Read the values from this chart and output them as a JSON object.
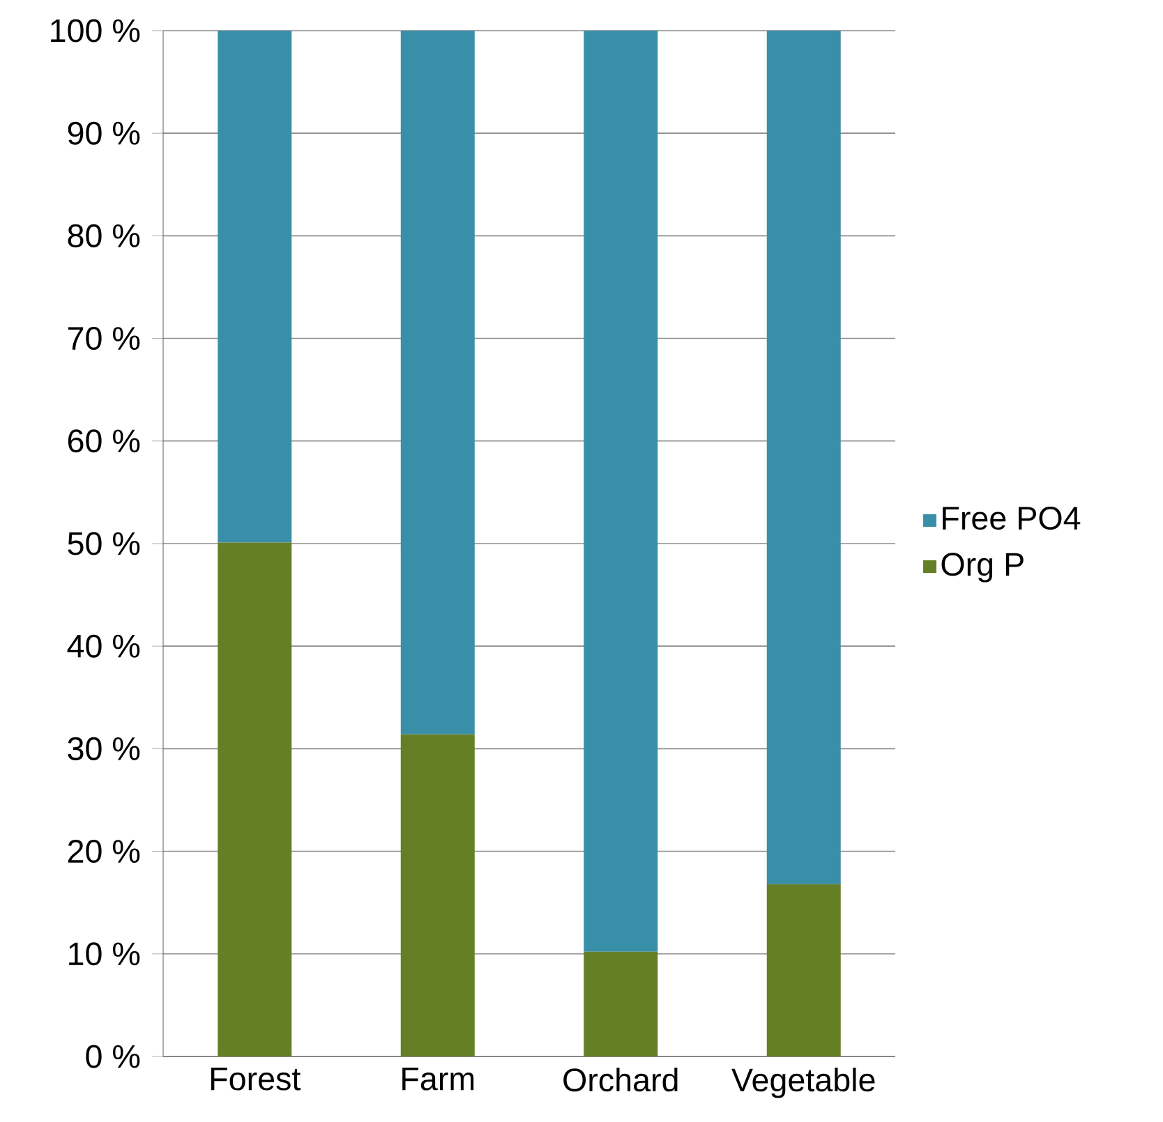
{
  "chart_data": {
    "type": "bar",
    "stacked": true,
    "categories": [
      "Forest",
      "Farm",
      "Orchard",
      "Vegetable"
    ],
    "series": [
      {
        "name": "Org P",
        "color": "#647f25",
        "values": [
          50.1,
          31.4,
          10.2,
          16.8
        ]
      },
      {
        "name": "Free PO4",
        "color": "#3a8fa8",
        "values": [
          49.9,
          68.6,
          89.8,
          83.2
        ]
      }
    ],
    "ylim": [
      0,
      100
    ],
    "yticks": [
      {
        "value": 0,
        "label": "0 %"
      },
      {
        "value": 10,
        "label": "10 %"
      },
      {
        "value": 20,
        "label": "20 %"
      },
      {
        "value": 30,
        "label": "30 %"
      },
      {
        "value": 40,
        "label": "40 %"
      },
      {
        "value": 50,
        "label": "50 %"
      },
      {
        "value": 60,
        "label": "60 %"
      },
      {
        "value": 70,
        "label": "70 %"
      },
      {
        "value": 80,
        "label": "80 %"
      },
      {
        "value": 90,
        "label": "90 %"
      },
      {
        "value": 100,
        "label": "100 %"
      }
    ],
    "grid": "y",
    "legend": "right"
  }
}
